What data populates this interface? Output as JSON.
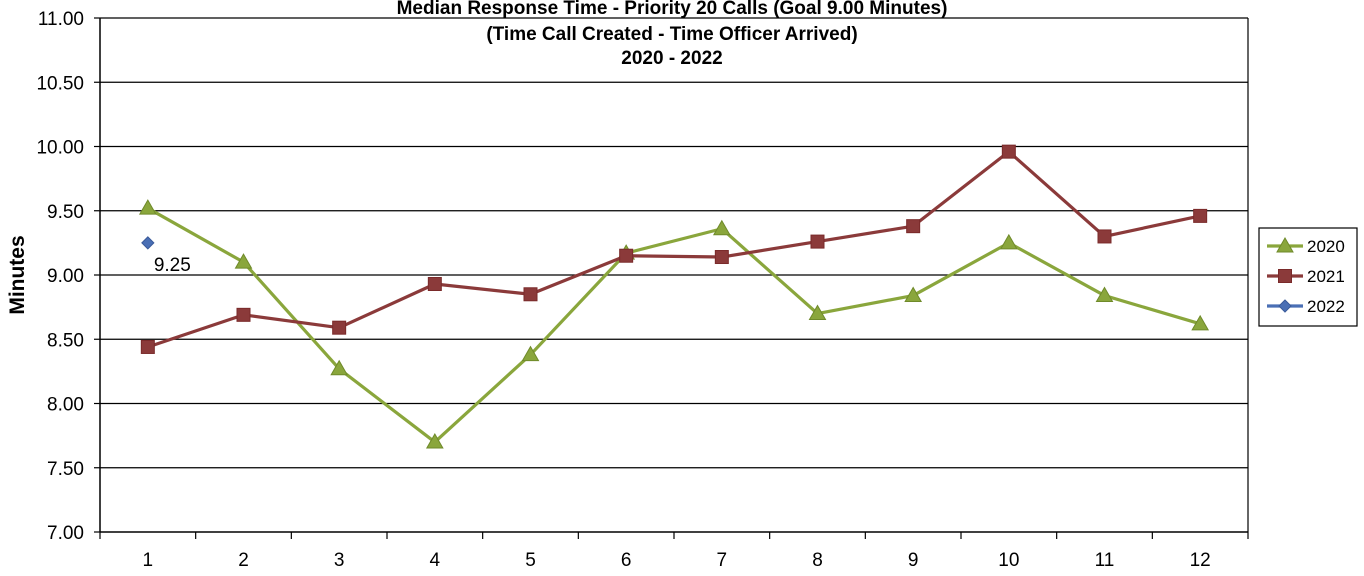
{
  "chart_data": {
    "type": "line",
    "title_lines": [
      "Median Response Time - Priority 20 Calls (Goal 9.00 Minutes)",
      "(Time Call Created - Time Officer Arrived)",
      "2020 - 2022"
    ],
    "xlabel": "",
    "ylabel": "Minutes",
    "x": [
      1,
      2,
      3,
      4,
      5,
      6,
      7,
      8,
      9,
      10,
      11,
      12
    ],
    "x_tick_labels": [
      "1",
      "2",
      "3",
      "4",
      "5",
      "6",
      "7",
      "8",
      "9",
      "10",
      "11",
      "12"
    ],
    "ylim": [
      7.0,
      11.0
    ],
    "y_tick_labels": [
      "7.00",
      "7.50",
      "8.00",
      "8.50",
      "9.00",
      "9.50",
      "10.00",
      "10.50",
      "11.00"
    ],
    "grid": "horizontal",
    "legend_position": "right",
    "series": [
      {
        "name": "2020",
        "color": "#8aa63c",
        "marker": "triangle",
        "values": [
          9.52,
          9.1,
          8.27,
          7.7,
          8.38,
          9.17,
          9.36,
          8.7,
          8.84,
          9.25,
          8.84,
          8.62
        ]
      },
      {
        "name": "2021",
        "color": "#8b3a3a",
        "marker": "square",
        "values": [
          8.44,
          8.69,
          8.59,
          8.93,
          8.85,
          9.15,
          9.14,
          9.26,
          9.38,
          9.96,
          9.3,
          9.46
        ]
      },
      {
        "name": "2022",
        "color": "#4a6fb5",
        "marker": "diamond",
        "values": [
          9.25,
          null,
          null,
          null,
          null,
          null,
          null,
          null,
          null,
          null,
          null,
          null
        ],
        "data_labels": [
          "9.25"
        ]
      }
    ]
  }
}
